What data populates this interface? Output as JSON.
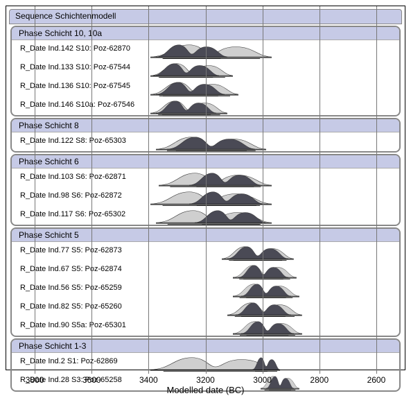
{
  "axis": {
    "label": "Modelled date (BC)",
    "min": 2500,
    "max": 3900,
    "ticks": [
      3800,
      3600,
      3400,
      3200,
      3000,
      2800,
      2600
    ],
    "grid_color": "#777777",
    "text_color": "#000000"
  },
  "sequence_title": "Sequence Schichtenmodell",
  "colors": {
    "phase_bg": "#c6cae6",
    "unmodelled": "#cfcfcf",
    "modelled": "#4a4a55",
    "border": "#888888"
  },
  "fontsize": {
    "label": 12,
    "row": 11,
    "axis": 13
  },
  "phases": [
    {
      "title": "Phase Schicht 10, 10a",
      "rows": [
        {
          "label": "R_Date Ind.142 S10: Poz-62870",
          "u_from": 3400,
          "u_to": 2960,
          "m_from": 3380,
          "m_to": 3120
        },
        {
          "label": "R_Date Ind.133 S10: Poz-67544",
          "u_from": 3400,
          "u_to": 3100,
          "m_from": 3390,
          "m_to": 3150
        },
        {
          "label": "R_Date Ind.136 S10: Poz-67545",
          "u_from": 3400,
          "u_to": 3080,
          "m_from": 3380,
          "m_to": 3130
        },
        {
          "label": "R_Date Ind.146 S10a: Poz-67546",
          "u_from": 3400,
          "u_to": 3120,
          "m_from": 3380,
          "m_to": 3160
        }
      ]
    },
    {
      "title": "Phase Schicht 8",
      "rows": [
        {
          "label": "R_Date Ind.122 S8: Poz-65303",
          "u_from": 3380,
          "u_to": 2980,
          "m_from": 3340,
          "m_to": 3020
        }
      ]
    },
    {
      "title": "Phase Schicht 6",
      "rows": [
        {
          "label": "R_Date Ind.103 S6: Poz-62871",
          "u_from": 3370,
          "u_to": 2960,
          "m_from": 3260,
          "m_to": 3000
        },
        {
          "label": "R_Date Ind.98 S6: Poz-62872",
          "u_from": 3400,
          "u_to": 2960,
          "m_from": 3260,
          "m_to": 2990
        },
        {
          "label": "R_Date Ind.117 S6: Poz-65302",
          "u_from": 3380,
          "u_to": 2960,
          "m_from": 3240,
          "m_to": 2980
        }
      ]
    },
    {
      "title": "Phase Schicht 5",
      "rows": [
        {
          "label": "R_Date Ind.77 S5: Poz-62873",
          "u_from": 3140,
          "u_to": 2880,
          "m_from": 3120,
          "m_to": 2900
        },
        {
          "label": "R_Date Ind.67 S5: Poz-62874",
          "u_from": 3100,
          "u_to": 2870,
          "m_from": 3080,
          "m_to": 2900
        },
        {
          "label": "R_Date Ind.56 S5: Poz-65259",
          "u_from": 3100,
          "u_to": 2860,
          "m_from": 3070,
          "m_to": 2890
        },
        {
          "label": "R_Date Ind.82 S5: Poz-65260",
          "u_from": 3120,
          "u_to": 2850,
          "m_from": 3090,
          "m_to": 2890
        },
        {
          "label": "R_Date Ind.90 S5a: Poz-65301",
          "u_from": 3100,
          "u_to": 2850,
          "m_from": 3070,
          "m_to": 2880
        }
      ]
    },
    {
      "title": "Phase Schicht 1-3",
      "rows": [
        {
          "label": "R_Date Ind.2 S1: Poz-62869",
          "u_from": 3400,
          "u_to": 2930,
          "m_from": 3030,
          "m_to": 2930
        },
        {
          "label": "R_Date Ind.28 S3: Poz-65258",
          "u_from": 3000,
          "u_to": 2860,
          "m_from": 2980,
          "m_to": 2880
        }
      ]
    }
  ]
}
